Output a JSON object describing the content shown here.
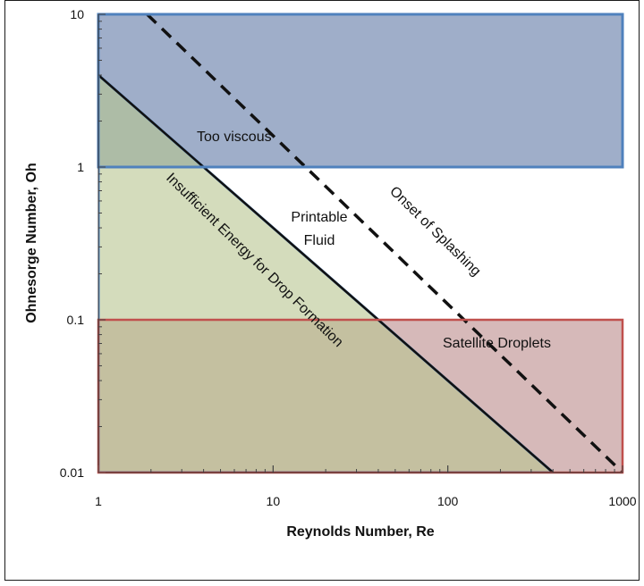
{
  "chart_data": {
    "type": "area",
    "title": "",
    "xlabel": "Reynolds Number, Re",
    "ylabel": "Ohnesorge Number, Oh",
    "xscale": "log",
    "yscale": "log",
    "xlim": [
      1,
      1000
    ],
    "ylim": [
      0.01,
      10
    ],
    "xticks": [
      "1",
      "10",
      "100",
      "1000"
    ],
    "yticks": [
      "0.01",
      "0.1",
      "1",
      "10"
    ],
    "grid": false,
    "regions": [
      {
        "name": "Too viscous",
        "label": "Too viscous",
        "x": [
          1,
          1000
        ],
        "y": [
          1,
          10
        ],
        "color": "#8ea0bf"
      },
      {
        "name": "Satellite Droplets",
        "label": "Satellite Droplets",
        "x": [
          1,
          1000
        ],
        "y": [
          0.01,
          0.1
        ],
        "color": "#c8a2a1"
      },
      {
        "name": "Insufficient Energy for Drop Formation",
        "label": "Insufficient Energy for Drop Formation",
        "vertices": [
          [
            1,
            4
          ],
          [
            1,
            0.01
          ],
          [
            400,
            0.01
          ]
        ],
        "color": "#b7c48f"
      },
      {
        "name": "Printable Fluid",
        "label": "Printable Fluid",
        "color": "#ffffff"
      }
    ],
    "lines": [
      {
        "name": "Onset of Splashing",
        "label": "Onset of Splashing",
        "style": "dashed",
        "x": [
          1.9,
          1000
        ],
        "y": [
          10,
          0.01
        ]
      },
      {
        "name": "Drop formation boundary",
        "style": "solid",
        "x": [
          1,
          400
        ],
        "y": [
          4,
          0.01
        ]
      }
    ],
    "colors": {
      "too_viscous_fill": "#8ea0bf",
      "too_viscous_border": "#4f81bd",
      "satellite_fill": "#c8a2a1",
      "satellite_border": "#c0504d",
      "insufficient_fill": "#b7c48f",
      "insufficient_border": "#4f81bd",
      "splash_line": "#111111"
    }
  }
}
